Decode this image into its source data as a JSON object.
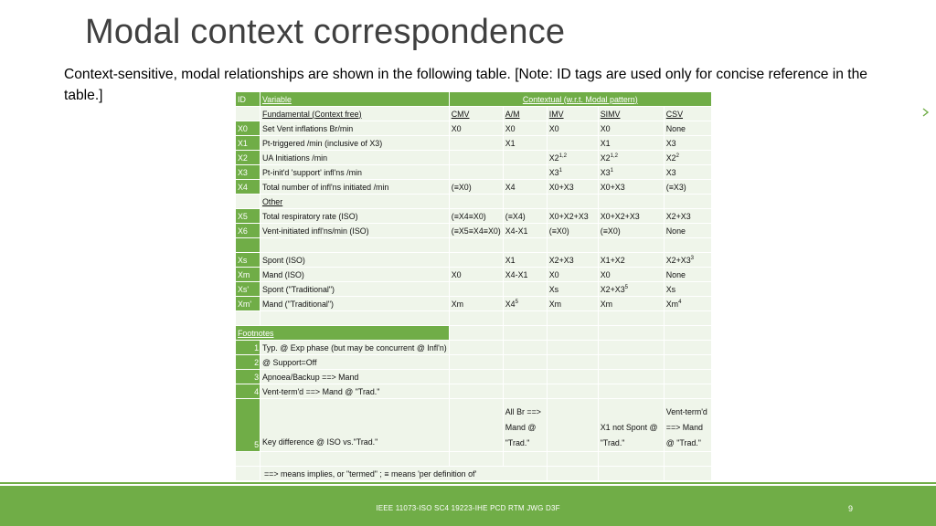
{
  "slide": {
    "title": "Modal context correspondence",
    "subtitle": "Context-sensitive, modal relationships are shown in the following table.  [Note:  ID tags are used only for concise reference in the table.]",
    "footer": "IEEE 11073-ISO SC4 19223-IHE PCD RTM JWG D3F",
    "page_number": "9"
  },
  "table": {
    "col_id": "ID",
    "col_variable": "Variable",
    "col_context": "Contextual (w.r.t. Modal pattern)",
    "fundamental_label": "Fundamental (Context free)",
    "other_label": "Other",
    "modes": [
      "CMV",
      "A/M",
      "IMV",
      "SIMV",
      "CSV"
    ],
    "rows": {
      "x0": {
        "id": "X0",
        "var": "Set Vent inflations Br/min",
        "cmv": "X0",
        "am": "X0",
        "imv": "X0",
        "simv": "X0",
        "csv": "None"
      },
      "x1": {
        "id": "X1",
        "var": "Pt-triggered /min (inclusive of X3)",
        "cmv": "",
        "am": "X1",
        "imv": "",
        "simv": "X1",
        "csv": "X3"
      },
      "x2": {
        "id": "X2",
        "var": "UA Initiations /min",
        "cmv": "",
        "am": "",
        "imv": "X2",
        "imv_sup": "1,2",
        "simv": "X2",
        "simv_sup": "1,2",
        "csv": "X2",
        "csv_sup": "2"
      },
      "x3": {
        "id": "X3",
        "var": "Pt-init'd 'support' infl'ns /min",
        "cmv": "",
        "am": "",
        "imv": "X3",
        "imv_sup": "1",
        "simv": "X3",
        "simv_sup": "1",
        "csv": "X3"
      },
      "x4": {
        "id": "X4",
        "var": "Total number of infl'ns initiated /min",
        "cmv": "(≡X0)",
        "am": "X4",
        "imv": "X0+X3",
        "simv": "X0+X3",
        "csv": "(≡X3)"
      },
      "x5": {
        "id": "X5",
        "var": "Total respiratory rate (ISO)",
        "cmv": "(≡X4≡X0)",
        "am": "(≡X4)",
        "imv": "X0+X2+X3",
        "simv": "X0+X2+X3",
        "csv": "X2+X3"
      },
      "x6": {
        "id": "X6",
        "var": "Vent-initiated infl'ns/min (ISO)",
        "cmv": "(≡X5≡X4≡X0)",
        "am": "X4-X1",
        "imv": "(≡X0)",
        "simv": "(≡X0)",
        "csv": "None"
      },
      "xs": {
        "id": "Xs",
        "var": "Spont (ISO)",
        "cmv": "",
        "am": "X1",
        "imv": "X2+X3",
        "simv": "X1+X2",
        "csv": "X2+X3",
        "csv_sup": "3"
      },
      "xm": {
        "id": "Xm",
        "var": "Mand (ISO)",
        "cmv": "X0",
        "am": "X4-X1",
        "imv": "X0",
        "simv": "X0",
        "csv": "None"
      },
      "xs2": {
        "id": "Xs'",
        "var": "Spont (\"Traditional\")",
        "cmv": "",
        "am": "",
        "imv": "Xs",
        "simv": "X2+X3",
        "simv_sup": "5",
        "csv": "Xs"
      },
      "xm2": {
        "id": "Xm'",
        "var": "Mand (\"Traditional\")",
        "cmv": "Xm",
        "am": "X4",
        "am_sup": "5",
        "imv": "Xm",
        "simv": "Xm",
        "csv": "Xm",
        "csv_sup": "4"
      }
    },
    "footnotes_label": "Footnotes",
    "footnotes": [
      {
        "num": "1",
        "text": "Typ. @ Exp phase (but may be concurrent @ Infl'n)"
      },
      {
        "num": "2",
        "text": " @ Support=Off"
      },
      {
        "num": "3",
        "text": "Apnoea/Backup ==> Mand"
      },
      {
        "num": "4",
        "text": "Vent-term'd ==> Mand @ \"Trad.\""
      }
    ],
    "fn5": {
      "num": "5",
      "text": "Key difference @ ISO vs.\"Trad.\"",
      "am": "All Br ==> Mand @ \"Trad.\"",
      "simv": "X1 not Spont @ \"Trad.\"",
      "csv": "Vent-term'd ==> Mand @ \"Trad.\""
    },
    "legend": "==> means implies, or \"termed\" ; ≡ means 'per definition of'"
  },
  "colors": {
    "accent": "#70ad47",
    "row_fill": "#eff5ea",
    "title": "#404040"
  }
}
